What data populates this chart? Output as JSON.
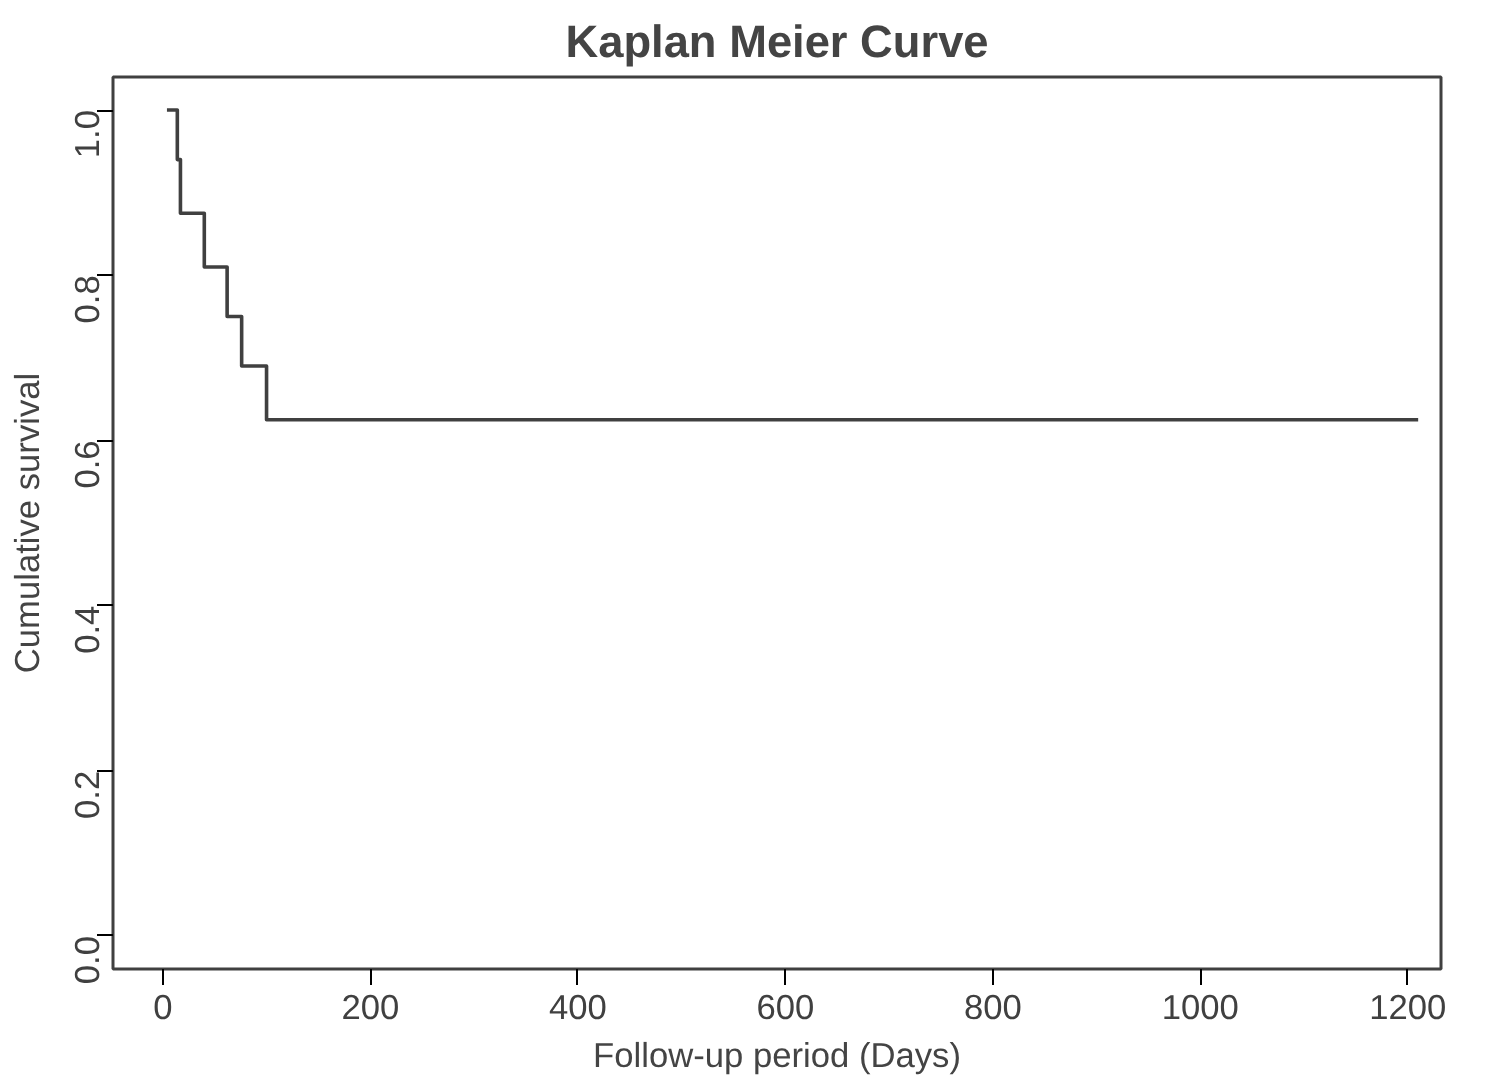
{
  "chart_data": {
    "type": "step",
    "title": "Kaplan Meier Curve",
    "xlabel": "Follow-up period (Days)",
    "ylabel": "Cumulative survival",
    "x": [
      4,
      14,
      17,
      40,
      62,
      76,
      100,
      1210
    ],
    "series": [
      {
        "color": "#404040",
        "values": [
          1.0,
          0.94,
          0.875,
          0.81,
          0.75,
          0.69,
          0.625,
          0.625
        ]
      }
    ],
    "xlim": [
      -48,
      1232
    ],
    "ylim": [
      -0.04,
      1.04
    ],
    "xticks": [
      0,
      200,
      400,
      600,
      800,
      1000,
      1200
    ],
    "yticks": [
      {
        "value": 0,
        "label": "0.0"
      },
      {
        "value": 0.2,
        "label": "0.2"
      },
      {
        "value": 0.4,
        "label": "0.4"
      },
      {
        "value": 0.6,
        "label": "0.6"
      },
      {
        "value": 0.8,
        "label": "0.8"
      },
      {
        "value": 1,
        "label": "1.0"
      }
    ],
    "grid": false,
    "marker": "none",
    "line_style": "solid"
  }
}
